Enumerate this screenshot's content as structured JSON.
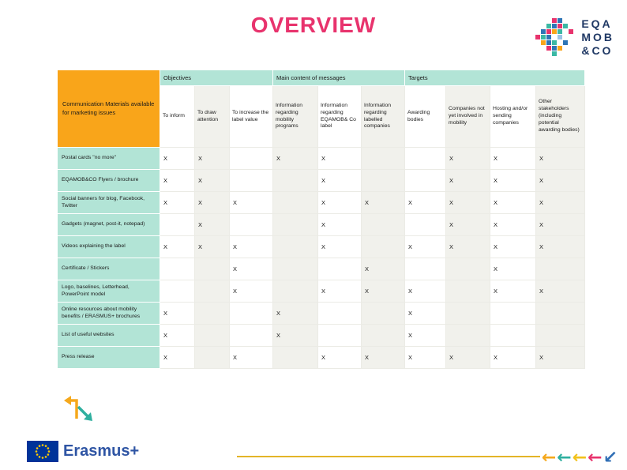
{
  "title": "OVERVIEW",
  "logo": {
    "line1": "EQA",
    "line2": "MOB",
    "line3": "&CO"
  },
  "table": {
    "corner_header": "Communication Materials available for marketing issues",
    "groups": [
      {
        "label": "Objectives",
        "span": 3
      },
      {
        "label": "Main content of messages",
        "span": 3
      },
      {
        "label": "Targets",
        "span": 4
      }
    ],
    "columns": [
      "To inform",
      "To draw attention",
      "To increase the label value",
      "Information regarding mobility programs",
      "Information regarding EQAMOB& Co label",
      "Information regarding labelled companies",
      "Awarding bodies",
      "Companies not yet involved in mobility",
      "Hosting and/or sending companies",
      "Other stakeholders (including potential awarding bodies)"
    ],
    "rows": [
      {
        "label": "Postal cards \"no more\"",
        "marks": [
          "X",
          "X",
          "",
          "X",
          "X",
          "",
          "",
          "X",
          "X",
          "X"
        ]
      },
      {
        "label": "EQAMOB&CO Flyers / brochure",
        "marks": [
          "X",
          "X",
          "",
          "",
          "X",
          "",
          "",
          "X",
          "X",
          "X"
        ]
      },
      {
        "label": "Social banners for blog, Facebook, Twitter",
        "marks": [
          "X",
          "X",
          "X",
          "",
          "X",
          "X",
          "X",
          "X",
          "X",
          "X"
        ]
      },
      {
        "label": "Gadgets (magnet, post-it, notepad)",
        "marks": [
          "",
          "X",
          "",
          "",
          "X",
          "",
          "",
          "X",
          "X",
          "X"
        ]
      },
      {
        "label": "Videos explaining the label",
        "marks": [
          "X",
          "X",
          "X",
          "",
          "X",
          "",
          "X",
          "X",
          "X",
          "X"
        ]
      },
      {
        "label": "Certificate / Stickers",
        "marks": [
          "",
          "",
          "X",
          "",
          "",
          "X",
          "",
          "",
          "X",
          ""
        ]
      },
      {
        "label": "Logo, baselines, Letterhead, PowerPoint model",
        "marks": [
          "",
          "",
          "X",
          "",
          "X",
          "X",
          "X",
          "",
          "X",
          "X"
        ]
      },
      {
        "label": "Online resources about mobility benefits / ERASMUS+ brochures",
        "marks": [
          "X",
          "",
          "",
          "X",
          "",
          "",
          "X",
          "",
          "",
          ""
        ]
      },
      {
        "label": "List of useful websites",
        "marks": [
          "X",
          "",
          "",
          "X",
          "",
          "",
          "X",
          "",
          "",
          ""
        ]
      },
      {
        "label": "Press release",
        "marks": [
          "X",
          "",
          "X",
          "",
          "X",
          "X",
          "X",
          "X",
          "X",
          "X"
        ]
      }
    ]
  },
  "footer": {
    "erasmus_label": "Erasmus+",
    "arrows": [
      {
        "icon": "left-arrow",
        "char": "←",
        "color": "#F5A81C"
      },
      {
        "icon": "left-arrow",
        "char": "←",
        "color": "#2FAF9F"
      },
      {
        "icon": "left-arrow",
        "char": "←",
        "color": "#F2C21B"
      },
      {
        "icon": "left-arrow",
        "char": "←",
        "color": "#E8336D"
      },
      {
        "icon": "down-left-arrow",
        "char": "↙",
        "color": "#2F6EB5"
      }
    ]
  },
  "colors": {
    "title": "#E8336D",
    "corner_header_bg": "#F9A51A",
    "group_header_bg": "#B2E4D6",
    "row_label_bg": "#B2E4D6",
    "mark_text": "#1a1a1a"
  }
}
